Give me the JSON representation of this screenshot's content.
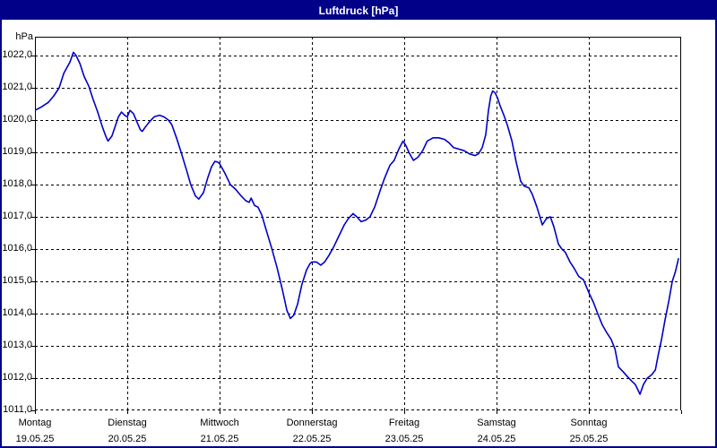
{
  "window": {
    "title": "Luftdruck [hPa]"
  },
  "colors": {
    "titlebar_bg": "#000088",
    "window_border": "#000088",
    "line": "#0000c8",
    "grid": "#000000",
    "background": "#ffffff",
    "title_text": "#ffffff"
  },
  "chart_data": {
    "type": "line",
    "title": "Luftdruck [hPa]",
    "ylabel": "hPa",
    "unit_label": "hPa",
    "ylim": [
      1011,
      1022
    ],
    "y_tick_step": 1,
    "y_tick_labels": [
      "1022,0",
      "1021,0",
      "1020,0",
      "1019,0",
      "1018,0",
      "1017,0",
      "1016,0",
      "1015,0",
      "1014,0",
      "1013,0",
      "1012,0",
      "1011,0"
    ],
    "x_range_hours": [
      0,
      168
    ],
    "x_days": [
      {
        "weekday": "Montag",
        "date": "19.05.25"
      },
      {
        "weekday": "Dienstag",
        "date": "20.05.25"
      },
      {
        "weekday": "Mittwoch",
        "date": "21.05.25"
      },
      {
        "weekday": "Donnerstag",
        "date": "22.05.25"
      },
      {
        "weekday": "Freitag",
        "date": "23.05.25"
      },
      {
        "weekday": "Samstag",
        "date": "24.05.25"
      },
      {
        "weekday": "Sonntag",
        "date": "25.05.25"
      }
    ],
    "grid": "dashed",
    "legend": "none",
    "series": [
      {
        "name": "Luftdruck",
        "unit": "hPa",
        "color": "#0000c8",
        "points": [
          [
            0,
            1020.3
          ],
          [
            1.6,
            1020.4
          ],
          [
            3.5,
            1020.55
          ],
          [
            4.9,
            1020.75
          ],
          [
            6.3,
            1021.0
          ],
          [
            7.5,
            1021.45
          ],
          [
            8.4,
            1021.65
          ],
          [
            9.1,
            1021.8
          ],
          [
            10,
            1022.1
          ],
          [
            10.7,
            1022.0
          ],
          [
            11.7,
            1021.75
          ],
          [
            12.8,
            1021.35
          ],
          [
            14,
            1021.05
          ],
          [
            15.1,
            1020.65
          ],
          [
            16.3,
            1020.25
          ],
          [
            17.5,
            1019.8
          ],
          [
            18.4,
            1019.5
          ],
          [
            19,
            1019.35
          ],
          [
            20,
            1019.5
          ],
          [
            21,
            1019.85
          ],
          [
            21.7,
            1020.1
          ],
          [
            22.5,
            1020.25
          ],
          [
            23.3,
            1020.15
          ],
          [
            24,
            1020.1
          ],
          [
            24.7,
            1020.3
          ],
          [
            25.6,
            1020.2
          ],
          [
            26.5,
            1019.95
          ],
          [
            27.4,
            1019.7
          ],
          [
            27.9,
            1019.65
          ],
          [
            28.8,
            1019.8
          ],
          [
            29.8,
            1019.95
          ],
          [
            31,
            1020.1
          ],
          [
            32.4,
            1020.15
          ],
          [
            33.5,
            1020.1
          ],
          [
            34.7,
            1020.0
          ],
          [
            35.6,
            1019.85
          ],
          [
            36.8,
            1019.45
          ],
          [
            38,
            1019.0
          ],
          [
            39.4,
            1018.45
          ],
          [
            40.5,
            1018.0
          ],
          [
            41.7,
            1017.65
          ],
          [
            42.6,
            1017.55
          ],
          [
            43.8,
            1017.75
          ],
          [
            44.9,
            1018.2
          ],
          [
            45.9,
            1018.55
          ],
          [
            46.8,
            1018.72
          ],
          [
            47.5,
            1018.7
          ],
          [
            48,
            1018.65
          ],
          [
            49.4,
            1018.35
          ],
          [
            50.8,
            1018.0
          ],
          [
            52.2,
            1017.85
          ],
          [
            53.6,
            1017.65
          ],
          [
            54.8,
            1017.5
          ],
          [
            55.7,
            1017.45
          ],
          [
            56.2,
            1017.58
          ],
          [
            57.1,
            1017.35
          ],
          [
            58,
            1017.3
          ],
          [
            59,
            1017.05
          ],
          [
            60.1,
            1016.6
          ],
          [
            61.5,
            1016.05
          ],
          [
            62.9,
            1015.45
          ],
          [
            64.3,
            1014.75
          ],
          [
            65.5,
            1014.1
          ],
          [
            66.4,
            1013.85
          ],
          [
            67.3,
            1013.95
          ],
          [
            68.3,
            1014.3
          ],
          [
            69.4,
            1014.9
          ],
          [
            70.6,
            1015.35
          ],
          [
            71.5,
            1015.55
          ],
          [
            72,
            1015.6
          ],
          [
            73.2,
            1015.6
          ],
          [
            74.3,
            1015.5
          ],
          [
            75.3,
            1015.6
          ],
          [
            76.4,
            1015.8
          ],
          [
            77.6,
            1016.05
          ],
          [
            79,
            1016.4
          ],
          [
            80.4,
            1016.75
          ],
          [
            81.5,
            1016.95
          ],
          [
            82.7,
            1017.1
          ],
          [
            83.7,
            1017.0
          ],
          [
            84.8,
            1016.85
          ],
          [
            86,
            1016.9
          ],
          [
            87.1,
            1017.0
          ],
          [
            88.3,
            1017.3
          ],
          [
            89.7,
            1017.8
          ],
          [
            90.9,
            1018.2
          ],
          [
            92.3,
            1018.6
          ],
          [
            93.4,
            1018.75
          ],
          [
            94.6,
            1019.1
          ],
          [
            95.7,
            1019.35
          ],
          [
            96.5,
            1019.2
          ],
          [
            97.2,
            1019.0
          ],
          [
            98.4,
            1018.75
          ],
          [
            99.6,
            1018.85
          ],
          [
            100.8,
            1019.05
          ],
          [
            102,
            1019.35
          ],
          [
            103.5,
            1019.45
          ],
          [
            105,
            1019.45
          ],
          [
            106.5,
            1019.4
          ],
          [
            107.6,
            1019.3
          ],
          [
            108.8,
            1019.15
          ],
          [
            110.2,
            1019.1
          ],
          [
            111.6,
            1019.05
          ],
          [
            113,
            1018.95
          ],
          [
            114.4,
            1018.9
          ],
          [
            115.3,
            1018.95
          ],
          [
            116.3,
            1019.15
          ],
          [
            117.2,
            1019.55
          ],
          [
            117.9,
            1020.3
          ],
          [
            118.5,
            1020.75
          ],
          [
            119,
            1020.9
          ],
          [
            119.6,
            1020.85
          ],
          [
            120.2,
            1020.7
          ],
          [
            120.9,
            1020.45
          ],
          [
            121.9,
            1020.15
          ],
          [
            122.8,
            1019.85
          ],
          [
            124,
            1019.35
          ],
          [
            125.1,
            1018.7
          ],
          [
            126.3,
            1018.1
          ],
          [
            127.2,
            1017.95
          ],
          [
            128.4,
            1017.9
          ],
          [
            129.3,
            1017.7
          ],
          [
            130.5,
            1017.3
          ],
          [
            131.9,
            1016.75
          ],
          [
            133,
            1016.95
          ],
          [
            134,
            1017.0
          ],
          [
            134.9,
            1016.7
          ],
          [
            136.1,
            1016.15
          ],
          [
            137,
            1016.0
          ],
          [
            137.9,
            1015.9
          ],
          [
            139.1,
            1015.6
          ],
          [
            140.2,
            1015.4
          ],
          [
            141.4,
            1015.15
          ],
          [
            142.6,
            1015.05
          ],
          [
            144,
            1014.65
          ],
          [
            145.2,
            1014.35
          ],
          [
            146.3,
            1014.0
          ],
          [
            147.5,
            1013.65
          ],
          [
            148.7,
            1013.4
          ],
          [
            149.8,
            1013.2
          ],
          [
            150.8,
            1012.9
          ],
          [
            151.7,
            1012.35
          ],
          [
            152.9,
            1012.2
          ],
          [
            154,
            1012.05
          ],
          [
            155.2,
            1011.9
          ],
          [
            156.1,
            1011.8
          ],
          [
            157.3,
            1011.5
          ],
          [
            158.2,
            1011.8
          ],
          [
            159.2,
            1012.0
          ],
          [
            160.3,
            1012.1
          ],
          [
            161.3,
            1012.25
          ],
          [
            162,
            1012.7
          ],
          [
            162.9,
            1013.2
          ],
          [
            163.8,
            1013.8
          ],
          [
            164.8,
            1014.4
          ],
          [
            165.7,
            1015.0
          ],
          [
            166.5,
            1015.3
          ],
          [
            167.3,
            1015.7
          ]
        ]
      }
    ]
  }
}
